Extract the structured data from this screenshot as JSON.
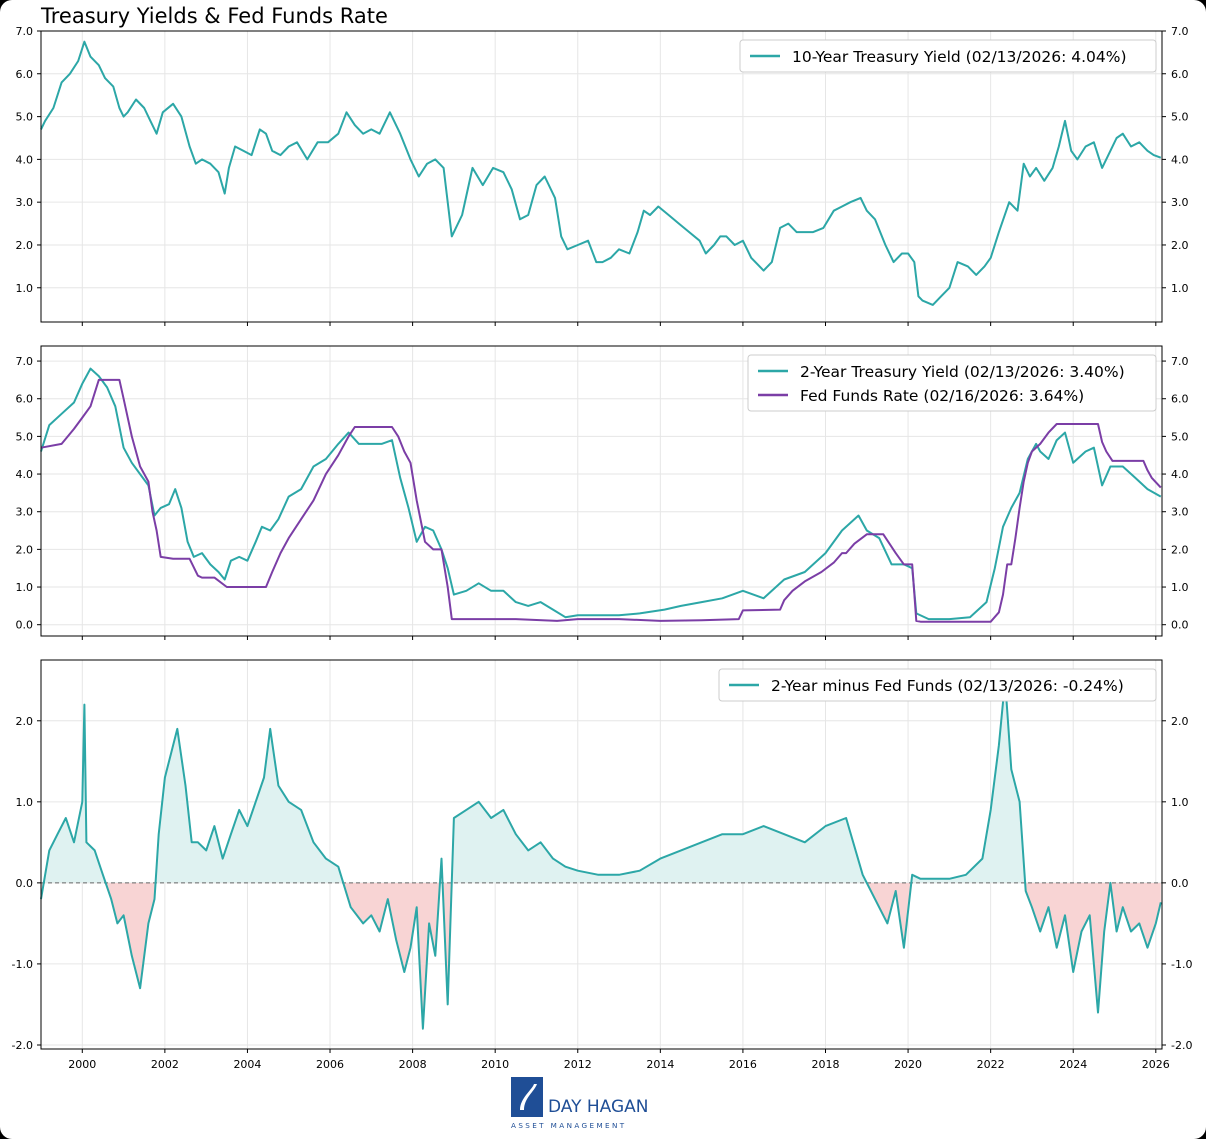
{
  "figure": {
    "title": "Treasury Yields & Fed Funds Rate"
  },
  "logo": {
    "name": "DAY HAGAN",
    "subtitle": "ASSET MANAGEMENT"
  },
  "chart_data": [
    {
      "type": "line",
      "panel": "top",
      "ylim": [
        0.2,
        7.0
      ],
      "yticks": [
        "1.0",
        "2.0",
        "3.0",
        "4.0",
        "5.0",
        "6.0",
        "7.0"
      ],
      "xlim": [
        1999.0,
        2026.15
      ],
      "grid": true,
      "legend_position": "top-right",
      "series": [
        {
          "name": "10-Year Treasury Yield (02/13/2026: 4.04%)",
          "color": "#2ca7a7",
          "x": [
            1999.0,
            1999.1,
            1999.3,
            1999.5,
            1999.7,
            1999.9,
            2000.05,
            2000.2,
            2000.4,
            2000.55,
            2000.75,
            2000.9,
            2001.0,
            2001.1,
            2001.3,
            2001.5,
            2001.65,
            2001.8,
            2001.95,
            2002.2,
            2002.4,
            2002.6,
            2002.75,
            2002.9,
            2003.1,
            2003.3,
            2003.45,
            2003.55,
            2003.7,
            2003.9,
            2004.1,
            2004.3,
            2004.45,
            2004.6,
            2004.8,
            2005.0,
            2005.2,
            2005.45,
            2005.7,
            2005.95,
            2006.2,
            2006.4,
            2006.6,
            2006.8,
            2007.0,
            2007.2,
            2007.45,
            2007.7,
            2007.95,
            2008.15,
            2008.35,
            2008.55,
            2008.75,
            2008.95,
            2009.2,
            2009.45,
            2009.7,
            2009.95,
            2010.2,
            2010.4,
            2010.6,
            2010.8,
            2011.0,
            2011.2,
            2011.45,
            2011.6,
            2011.75,
            2012.0,
            2012.25,
            2012.45,
            2012.6,
            2012.8,
            2013.0,
            2013.25,
            2013.45,
            2013.6,
            2013.75,
            2013.95,
            2014.2,
            2014.45,
            2014.7,
            2014.95,
            2015.1,
            2015.3,
            2015.45,
            2015.6,
            2015.8,
            2016.0,
            2016.2,
            2016.5,
            2016.7,
            2016.9,
            2017.1,
            2017.3,
            2017.5,
            2017.7,
            2017.95,
            2018.2,
            2018.4,
            2018.6,
            2018.85,
            2019.0,
            2019.2,
            2019.45,
            2019.65,
            2019.85,
            2020.0,
            2020.15,
            2020.25,
            2020.35,
            2020.6,
            2020.8,
            2021.0,
            2021.2,
            2021.45,
            2021.65,
            2021.85,
            2022.0,
            2022.2,
            2022.45,
            2022.65,
            2022.8,
            2022.95,
            2023.1,
            2023.3,
            2023.5,
            2023.65,
            2023.8,
            2023.95,
            2024.1,
            2024.3,
            2024.5,
            2024.7,
            2024.9,
            2025.05,
            2025.2,
            2025.4,
            2025.6,
            2025.8,
            2025.95,
            2026.12
          ],
          "values": [
            4.7,
            4.9,
            5.2,
            5.8,
            6.0,
            6.3,
            6.75,
            6.4,
            6.2,
            5.9,
            5.7,
            5.2,
            5.0,
            5.1,
            5.4,
            5.2,
            4.9,
            4.6,
            5.1,
            5.3,
            5.0,
            4.3,
            3.9,
            4.0,
            3.9,
            3.7,
            3.2,
            3.8,
            4.3,
            4.2,
            4.1,
            4.7,
            4.6,
            4.2,
            4.1,
            4.3,
            4.4,
            4.0,
            4.4,
            4.4,
            4.6,
            5.1,
            4.8,
            4.6,
            4.7,
            4.6,
            5.1,
            4.6,
            4.0,
            3.6,
            3.9,
            4.0,
            3.8,
            2.2,
            2.7,
            3.8,
            3.4,
            3.8,
            3.7,
            3.3,
            2.6,
            2.7,
            3.4,
            3.6,
            3.1,
            2.2,
            1.9,
            2.0,
            2.1,
            1.6,
            1.6,
            1.7,
            1.9,
            1.8,
            2.3,
            2.8,
            2.7,
            2.9,
            2.7,
            2.5,
            2.3,
            2.1,
            1.8,
            2.0,
            2.2,
            2.2,
            2.0,
            2.1,
            1.7,
            1.4,
            1.6,
            2.4,
            2.5,
            2.3,
            2.3,
            2.3,
            2.4,
            2.8,
            2.9,
            3.0,
            3.1,
            2.8,
            2.6,
            2.0,
            1.6,
            1.8,
            1.8,
            1.6,
            0.8,
            0.7,
            0.6,
            0.8,
            1.0,
            1.6,
            1.5,
            1.3,
            1.5,
            1.7,
            2.3,
            3.0,
            2.8,
            3.9,
            3.6,
            3.8,
            3.5,
            3.8,
            4.3,
            4.9,
            4.2,
            4.0,
            4.3,
            4.4,
            3.8,
            4.2,
            4.5,
            4.6,
            4.3,
            4.4,
            4.2,
            4.1,
            4.04
          ]
        }
      ]
    },
    {
      "type": "line",
      "panel": "middle",
      "ylim": [
        -0.3,
        7.4
      ],
      "yticks": [
        "0.0",
        "1.0",
        "2.0",
        "3.0",
        "4.0",
        "5.0",
        "6.0",
        "7.0"
      ],
      "xlim": [
        1999.0,
        2026.15
      ],
      "grid": true,
      "legend_position": "top-right",
      "series": [
        {
          "name": "2-Year Treasury Yield (02/13/2026: 3.40%)",
          "color": "#2ca7a7",
          "x": [
            1999.0,
            1999.2,
            1999.5,
            1999.8,
            2000.0,
            2000.2,
            2000.4,
            2000.6,
            2000.8,
            2001.0,
            2001.2,
            2001.4,
            2001.6,
            2001.75,
            2001.9,
            2002.1,
            2002.25,
            2002.4,
            2002.55,
            2002.7,
            2002.9,
            2003.1,
            2003.3,
            2003.45,
            2003.6,
            2003.8,
            2004.0,
            2004.2,
            2004.35,
            2004.55,
            2004.75,
            2005.0,
            2005.3,
            2005.6,
            2005.9,
            2006.2,
            2006.45,
            2006.7,
            2007.0,
            2007.25,
            2007.5,
            2007.7,
            2007.9,
            2008.1,
            2008.3,
            2008.5,
            2008.7,
            2008.85,
            2009.0,
            2009.3,
            2009.6,
            2009.9,
            2010.2,
            2010.5,
            2010.8,
            2011.1,
            2011.4,
            2011.7,
            2012.0,
            2012.5,
            2013.0,
            2013.5,
            2013.8,
            2014.1,
            2014.5,
            2015.0,
            2015.5,
            2016.0,
            2016.5,
            2017.0,
            2017.5,
            2018.0,
            2018.4,
            2018.8,
            2019.0,
            2019.3,
            2019.6,
            2019.9,
            2020.1,
            2020.2,
            2020.5,
            2021.0,
            2021.5,
            2021.9,
            2022.1,
            2022.3,
            2022.5,
            2022.7,
            2022.9,
            2023.1,
            2023.2,
            2023.4,
            2023.6,
            2023.8,
            2024.0,
            2024.3,
            2024.5,
            2024.7,
            2024.9,
            2025.2,
            2025.5,
            2025.8,
            2026.12
          ],
          "values": [
            4.6,
            5.3,
            5.6,
            5.9,
            6.4,
            6.8,
            6.6,
            6.3,
            5.8,
            4.7,
            4.3,
            4.0,
            3.7,
            2.9,
            3.1,
            3.2,
            3.6,
            3.1,
            2.2,
            1.8,
            1.9,
            1.6,
            1.4,
            1.2,
            1.7,
            1.8,
            1.7,
            2.2,
            2.6,
            2.5,
            2.8,
            3.4,
            3.6,
            4.2,
            4.4,
            4.8,
            5.1,
            4.8,
            4.8,
            4.8,
            4.9,
            3.9,
            3.1,
            2.2,
            2.6,
            2.5,
            2.0,
            1.5,
            0.8,
            0.9,
            1.1,
            0.9,
            0.9,
            0.6,
            0.5,
            0.6,
            0.4,
            0.2,
            0.25,
            0.25,
            0.25,
            0.3,
            0.35,
            0.4,
            0.5,
            0.6,
            0.7,
            0.9,
            0.7,
            1.2,
            1.4,
            1.9,
            2.5,
            2.9,
            2.5,
            2.3,
            1.6,
            1.6,
            1.5,
            0.3,
            0.15,
            0.15,
            0.2,
            0.6,
            1.5,
            2.6,
            3.1,
            3.5,
            4.4,
            4.8,
            4.6,
            4.4,
            4.9,
            5.1,
            4.3,
            4.6,
            4.7,
            3.7,
            4.2,
            4.2,
            3.9,
            3.6,
            3.4
          ]
        },
        {
          "name": "Fed Funds Rate (02/16/2026: 3.64%)",
          "color": "#7b3ea6",
          "x": [
            1999.0,
            1999.5,
            1999.8,
            2000.0,
            2000.2,
            2000.4,
            2000.6,
            2000.9,
            2001.0,
            2001.2,
            2001.4,
            2001.6,
            2001.7,
            2001.8,
            2001.9,
            2002.2,
            2002.6,
            2002.8,
            2002.9,
            2003.2,
            2003.5,
            2003.6,
            2004.0,
            2004.45,
            2004.6,
            2004.8,
            2005.0,
            2005.3,
            2005.6,
            2005.9,
            2006.2,
            2006.45,
            2006.6,
            2007.0,
            2007.5,
            2007.65,
            2007.8,
            2007.95,
            2008.1,
            2008.3,
            2008.5,
            2008.7,
            2008.85,
            2008.95,
            2009.5,
            2010.5,
            2011.5,
            2012.0,
            2013.0,
            2014.0,
            2015.0,
            2015.9,
            2016.0,
            2016.9,
            2017.0,
            2017.2,
            2017.5,
            2017.9,
            2018.2,
            2018.4,
            2018.5,
            2018.7,
            2019.0,
            2019.4,
            2019.55,
            2019.7,
            2019.9,
            2020.1,
            2020.2,
            2020.3,
            2021.0,
            2022.0,
            2022.2,
            2022.3,
            2022.4,
            2022.5,
            2022.6,
            2022.7,
            2022.8,
            2022.9,
            2023.0,
            2023.2,
            2023.4,
            2023.6,
            2024.0,
            2024.6,
            2024.7,
            2024.8,
            2024.95,
            2025.7,
            2025.8,
            2025.9,
            2026.12
          ],
          "values": [
            4.7,
            4.8,
            5.2,
            5.5,
            5.8,
            6.5,
            6.5,
            6.5,
            6.0,
            5.0,
            4.2,
            3.8,
            3.0,
            2.5,
            1.8,
            1.75,
            1.75,
            1.3,
            1.25,
            1.25,
            1.0,
            1.0,
            1.0,
            1.0,
            1.4,
            1.9,
            2.3,
            2.8,
            3.3,
            4.0,
            4.5,
            5.0,
            5.25,
            5.25,
            5.25,
            5.0,
            4.6,
            4.3,
            3.3,
            2.2,
            2.0,
            2.0,
            1.0,
            0.15,
            0.15,
            0.15,
            0.1,
            0.15,
            0.15,
            0.1,
            0.12,
            0.15,
            0.38,
            0.4,
            0.65,
            0.9,
            1.15,
            1.4,
            1.65,
            1.9,
            1.9,
            2.15,
            2.4,
            2.4,
            2.15,
            1.9,
            1.6,
            1.6,
            0.1,
            0.08,
            0.08,
            0.08,
            0.33,
            0.8,
            1.6,
            1.6,
            2.3,
            3.1,
            3.8,
            4.3,
            4.6,
            4.8,
            5.1,
            5.33,
            5.33,
            5.33,
            4.85,
            4.6,
            4.35,
            4.35,
            4.1,
            3.9,
            3.64
          ]
        }
      ]
    },
    {
      "type": "area",
      "panel": "bottom",
      "ylim": [
        -2.05,
        2.75
      ],
      "yticks": [
        "-2.0",
        "-1.0",
        "0.0",
        "1.0",
        "2.0"
      ],
      "xlim": [
        1999.0,
        2026.15
      ],
      "xticks": [
        "2000",
        "2002",
        "2004",
        "2006",
        "2008",
        "2010",
        "2012",
        "2014",
        "2016",
        "2018",
        "2020",
        "2022",
        "2024",
        "2026"
      ],
      "grid": true,
      "legend_position": "top-right",
      "series": [
        {
          "name": "2-Year minus Fed Funds (02/13/2026: -0.24%)",
          "color": "#2ca7a7",
          "positive_fill": "#dff2f1",
          "negative_fill": "#f8d4d4",
          "x": [
            1999.0,
            1999.2,
            1999.4,
            1999.6,
            1999.8,
            2000.0,
            2000.05,
            2000.1,
            2000.3,
            2000.5,
            2000.7,
            2000.85,
            2001.0,
            2001.2,
            2001.4,
            2001.6,
            2001.75,
            2001.85,
            2002.0,
            2002.15,
            2002.3,
            2002.5,
            2002.65,
            2002.8,
            2003.0,
            2003.2,
            2003.4,
            2003.6,
            2003.8,
            2004.0,
            2004.2,
            2004.4,
            2004.55,
            2004.75,
            2005.0,
            2005.3,
            2005.6,
            2005.9,
            2006.2,
            2006.5,
            2006.8,
            2007.0,
            2007.2,
            2007.4,
            2007.6,
            2007.8,
            2007.95,
            2008.1,
            2008.25,
            2008.4,
            2008.55,
            2008.7,
            2008.85,
            2009.0,
            2009.3,
            2009.6,
            2009.9,
            2010.2,
            2010.5,
            2010.8,
            2011.1,
            2011.4,
            2011.7,
            2012.0,
            2012.5,
            2013.0,
            2013.5,
            2014.0,
            2014.5,
            2015.0,
            2015.5,
            2016.0,
            2016.5,
            2017.0,
            2017.5,
            2018.0,
            2018.5,
            2018.9,
            2019.2,
            2019.5,
            2019.7,
            2019.9,
            2020.1,
            2020.3,
            2020.6,
            2021.0,
            2021.4,
            2021.8,
            2022.0,
            2022.2,
            2022.35,
            2022.5,
            2022.7,
            2022.85,
            2023.0,
            2023.2,
            2023.4,
            2023.6,
            2023.8,
            2024.0,
            2024.2,
            2024.4,
            2024.6,
            2024.75,
            2024.9,
            2025.05,
            2025.2,
            2025.4,
            2025.6,
            2025.8,
            2026.0,
            2026.12
          ],
          "values": [
            -0.2,
            0.4,
            0.6,
            0.8,
            0.5,
            1.0,
            2.2,
            0.5,
            0.4,
            0.1,
            -0.2,
            -0.5,
            -0.4,
            -0.9,
            -1.3,
            -0.5,
            -0.2,
            0.6,
            1.3,
            1.6,
            1.9,
            1.2,
            0.5,
            0.5,
            0.4,
            0.7,
            0.3,
            0.6,
            0.9,
            0.7,
            1.0,
            1.3,
            1.9,
            1.2,
            1.0,
            0.9,
            0.5,
            0.3,
            0.2,
            -0.3,
            -0.5,
            -0.4,
            -0.6,
            -0.2,
            -0.7,
            -1.1,
            -0.8,
            -0.3,
            -1.8,
            -0.5,
            -0.9,
            0.3,
            -1.5,
            0.8,
            0.9,
            1.0,
            0.8,
            0.9,
            0.6,
            0.4,
            0.5,
            0.3,
            0.2,
            0.15,
            0.1,
            0.1,
            0.15,
            0.3,
            0.4,
            0.5,
            0.6,
            0.6,
            0.7,
            0.6,
            0.5,
            0.7,
            0.8,
            0.1,
            -0.2,
            -0.5,
            -0.1,
            -0.8,
            0.1,
            0.05,
            0.05,
            0.05,
            0.1,
            0.3,
            0.9,
            1.7,
            2.5,
            1.4,
            1.0,
            -0.1,
            -0.3,
            -0.6,
            -0.3,
            -0.8,
            -0.4,
            -1.1,
            -0.6,
            -0.4,
            -1.6,
            -0.6,
            0.0,
            -0.6,
            -0.3,
            -0.6,
            -0.5,
            -0.8,
            -0.5,
            -0.24
          ]
        }
      ]
    }
  ]
}
